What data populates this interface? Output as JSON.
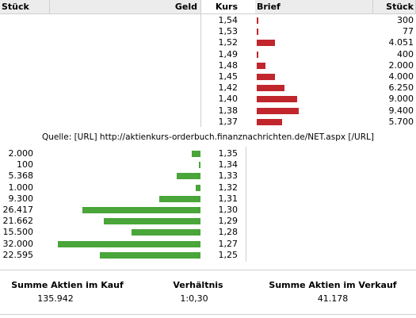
{
  "header": {
    "stueck_left": "Stück",
    "geld": "Geld",
    "kurs": "Kurs",
    "brief": "Brief",
    "stueck_right": "Stück"
  },
  "brief_rows": [
    {
      "kurs": "1,54",
      "stueck": "300",
      "value": 300
    },
    {
      "kurs": "1,53",
      "stueck": "77",
      "value": 77
    },
    {
      "kurs": "1,52",
      "stueck": "4.051",
      "value": 4051
    },
    {
      "kurs": "1,49",
      "stueck": "400",
      "value": 400
    },
    {
      "kurs": "1,48",
      "stueck": "2.000",
      "value": 2000
    },
    {
      "kurs": "1,45",
      "stueck": "4.000",
      "value": 4000
    },
    {
      "kurs": "1,42",
      "stueck": "6.250",
      "value": 6250
    },
    {
      "kurs": "1,40",
      "stueck": "9.000",
      "value": 9000
    },
    {
      "kurs": "1,38",
      "stueck": "9.400",
      "value": 9400
    },
    {
      "kurs": "1,37",
      "stueck": "5.700",
      "value": 5700
    }
  ],
  "source": "Quelle: [URL] http://aktienkurs-orderbuch.finanznachrichten.de/NET.aspx [/URL]",
  "geld_rows": [
    {
      "stueck": "2.000",
      "kurs": "1,35",
      "value": 2000
    },
    {
      "stueck": "100",
      "kurs": "1,34",
      "value": 100
    },
    {
      "stueck": "5.368",
      "kurs": "1,33",
      "value": 5368
    },
    {
      "stueck": "1.000",
      "kurs": "1,32",
      "value": 1000
    },
    {
      "stueck": "9.300",
      "kurs": "1,31",
      "value": 9300
    },
    {
      "stueck": "26.417",
      "kurs": "1,30",
      "value": 26417
    },
    {
      "stueck": "21.662",
      "kurs": "1,29",
      "value": 21662
    },
    {
      "stueck": "15.500",
      "kurs": "1,28",
      "value": 15500
    },
    {
      "stueck": "32.000",
      "kurs": "1,27",
      "value": 32000
    },
    {
      "stueck": "22.595",
      "kurs": "1,25",
      "value": 22595
    }
  ],
  "summary": {
    "kauf_label": "Summe Aktien im Kauf",
    "kauf_value": "135.942",
    "ratio_label": "Verhältnis",
    "ratio_value": "1:0,30",
    "verkauf_label": "Summe Aktien im Verkauf",
    "verkauf_value": "41.178"
  },
  "colors": {
    "brief_bar": "#c0262c",
    "geld_bar": "#4aa53a",
    "header_bg": "#ececec"
  }
}
